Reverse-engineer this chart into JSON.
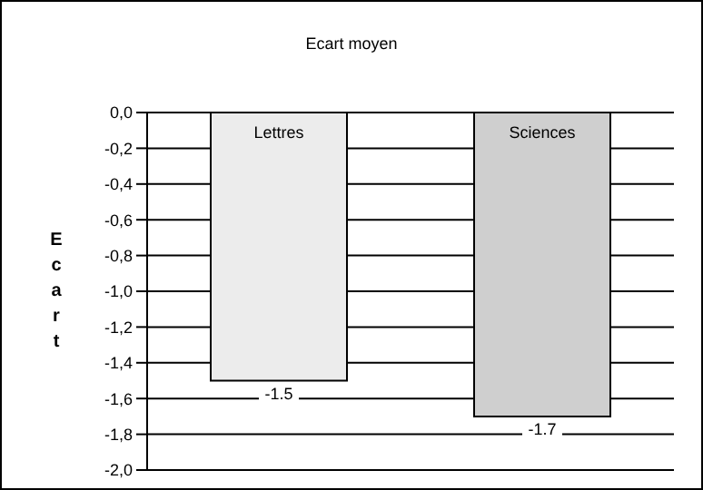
{
  "chart_data": {
    "type": "bar",
    "title": "Ecart moyen",
    "ylabel": "Ecart",
    "categories": [
      "Lettres",
      "Sciences"
    ],
    "values": [
      -1.5,
      -1.7
    ],
    "colors": [
      "#ececec",
      "#cfcfcf"
    ],
    "ylim": [
      -2.0,
      0.0
    ],
    "yticks": [
      {
        "value": 0,
        "label": "0,0"
      },
      {
        "value": -0.2,
        "label": "-0,2"
      },
      {
        "value": -0.4,
        "label": "-0,4"
      },
      {
        "value": -0.6,
        "label": "-0,6"
      },
      {
        "value": -0.8,
        "label": "-0,8"
      },
      {
        "value": -1.0,
        "label": "-1,0"
      },
      {
        "value": -1.2,
        "label": "-1,2"
      },
      {
        "value": -1.4,
        "label": "-1,4"
      },
      {
        "value": -1.6,
        "label": "-1,6"
      },
      {
        "value": -1.8,
        "label": "-1,8"
      },
      {
        "value": -2.0,
        "label": "-2,0"
      }
    ],
    "grid": "y",
    "data_labels": true,
    "legend": false
  }
}
